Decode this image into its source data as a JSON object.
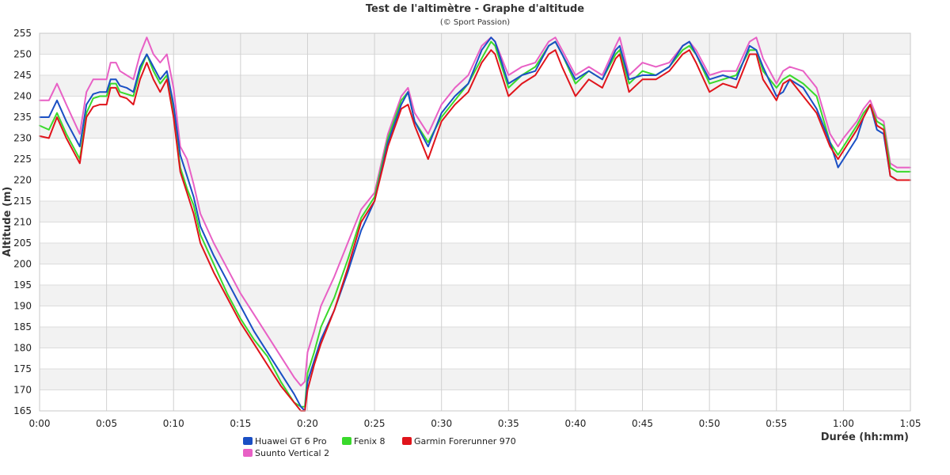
{
  "chart_data": {
    "type": "line",
    "title": "Test de l'altimètre - Graphe d'altitude",
    "subtitle": "(© Sport Passion)",
    "xlabel": "Durée (hh:mm)",
    "ylabel": "Altitude (m)",
    "x_unit": "minutes",
    "xlim": [
      0,
      65
    ],
    "ylim": [
      165,
      255
    ],
    "x_ticks": [
      {
        "v": 0,
        "label": "0:00"
      },
      {
        "v": 5,
        "label": "0:05"
      },
      {
        "v": 10,
        "label": "0:10"
      },
      {
        "v": 15,
        "label": "0:15"
      },
      {
        "v": 20,
        "label": "0:20"
      },
      {
        "v": 25,
        "label": "0:25"
      },
      {
        "v": 30,
        "label": "0:30"
      },
      {
        "v": 35,
        "label": "0:35"
      },
      {
        "v": 40,
        "label": "0:40"
      },
      {
        "v": 45,
        "label": "0:45"
      },
      {
        "v": 50,
        "label": "0:50"
      },
      {
        "v": 55,
        "label": "0:55"
      },
      {
        "v": 60,
        "label": "1:00"
      },
      {
        "v": 65,
        "label": "1:05"
      }
    ],
    "y_ticks": [
      165,
      170,
      175,
      180,
      185,
      190,
      195,
      200,
      205,
      210,
      215,
      220,
      225,
      230,
      235,
      240,
      245,
      250,
      255
    ],
    "grid": true,
    "legend_position": "bottom-left",
    "series": [
      {
        "name": "Huawei GT 6 Pro",
        "color": "#1a4fc4",
        "x": [
          0,
          0.7,
          1.3,
          2,
          3,
          3.5,
          4,
          4.5,
          5,
          5.3,
          5.7,
          6,
          6.5,
          7,
          7.5,
          8,
          8.5,
          9,
          9.5,
          10,
          10.5,
          11,
          11.5,
          12,
          13,
          14,
          15,
          16,
          17,
          18,
          19,
          19.5,
          19.8,
          20,
          20.5,
          21,
          22,
          23,
          24,
          25,
          26,
          27,
          27.5,
          28,
          29,
          30,
          31,
          32,
          33,
          33.7,
          34,
          35,
          36,
          37,
          38,
          38.5,
          39,
          40,
          41,
          42,
          43,
          43.3,
          44,
          45,
          46,
          47,
          48,
          48.5,
          49,
          50,
          51,
          52,
          53,
          53.5,
          54,
          55,
          55.5,
          56,
          57,
          58,
          59,
          59.6,
          60,
          61,
          61.5,
          62,
          62.5,
          63,
          63.5,
          64,
          64.5,
          65
        ],
        "y": [
          235,
          235,
          239,
          234,
          228,
          238,
          240.5,
          241,
          241,
          244,
          244,
          242.5,
          242,
          241,
          247,
          250,
          247,
          244,
          246,
          238,
          226,
          221,
          216,
          209,
          202,
          196,
          190,
          184,
          179,
          174,
          169,
          166,
          165,
          172,
          177,
          182,
          189,
          198,
          208,
          215,
          229,
          238,
          241,
          234,
          228,
          236,
          240,
          243,
          251,
          254,
          253,
          243,
          245,
          246,
          252,
          253,
          250,
          244,
          246,
          244,
          251,
          252,
          244,
          245,
          245,
          247,
          252,
          253,
          250,
          244,
          245,
          244,
          252,
          251,
          247,
          240,
          241,
          244,
          242,
          237,
          229,
          223,
          225,
          230,
          235,
          238,
          232,
          231,
          221,
          220,
          220,
          220
        ]
      },
      {
        "name": "Fenix 8",
        "color": "#39d92b",
        "x": [
          0,
          0.7,
          1.3,
          2,
          3,
          3.5,
          4,
          4.5,
          5,
          5.3,
          5.7,
          6,
          6.5,
          7,
          7.5,
          8,
          8.5,
          9,
          9.5,
          10,
          10.5,
          11,
          11.5,
          12,
          13,
          14,
          15,
          16,
          17,
          18,
          19,
          19.5,
          19.8,
          20,
          20.5,
          21,
          22,
          23,
          24,
          25,
          26,
          27,
          27.5,
          28,
          29,
          30,
          31,
          32,
          33,
          33.7,
          34,
          35,
          36,
          37,
          38,
          38.5,
          39,
          40,
          41,
          42,
          43,
          43.3,
          44,
          45,
          46,
          47,
          48,
          48.5,
          49,
          50,
          51,
          52,
          53,
          53.5,
          54,
          55,
          55.5,
          56,
          57,
          58,
          59,
          59.6,
          60,
          61,
          61.5,
          62,
          62.5,
          63,
          63.5,
          64,
          64.5,
          65
        ],
        "y": [
          233,
          232,
          236,
          231,
          225,
          236,
          239.5,
          240,
          240,
          243,
          243,
          241,
          240.5,
          240,
          246,
          250,
          246,
          243,
          245,
          236,
          223,
          218,
          214,
          207,
          200,
          193,
          187,
          182,
          178,
          172,
          167,
          166,
          166,
          174,
          179,
          185,
          192,
          201,
          211,
          216,
          230,
          239,
          241,
          234,
          229,
          235,
          239,
          243,
          249,
          253,
          252,
          242,
          245,
          247,
          252,
          253,
          250,
          243,
          246,
          244,
          250,
          251,
          243,
          246,
          245,
          247,
          251,
          252,
          250,
          243,
          244,
          245,
          251,
          251,
          246,
          242,
          244,
          245,
          243,
          240,
          229,
          226,
          228,
          233,
          236,
          238,
          234,
          233,
          223,
          222,
          222,
          222
        ]
      },
      {
        "name": "Garmin Forerunner 970",
        "color": "#e0141b",
        "x": [
          0,
          0.7,
          1.3,
          2,
          3,
          3.5,
          4,
          4.5,
          5,
          5.3,
          5.7,
          6,
          6.5,
          7,
          7.5,
          8,
          8.5,
          9,
          9.5,
          10,
          10.5,
          11,
          11.5,
          12,
          13,
          14,
          15,
          16,
          17,
          18,
          19,
          19.5,
          19.8,
          20,
          20.5,
          21,
          22,
          23,
          24,
          25,
          26,
          27,
          27.5,
          28,
          29,
          30,
          31,
          32,
          33,
          33.7,
          34,
          35,
          36,
          37,
          38,
          38.5,
          39,
          40,
          41,
          42,
          43,
          43.3,
          44,
          45,
          46,
          47,
          48,
          48.5,
          49,
          50,
          51,
          52,
          53,
          53.5,
          54,
          55,
          55.5,
          56,
          57,
          58,
          59,
          59.6,
          60,
          61,
          61.5,
          62,
          62.5,
          63,
          63.5,
          64,
          64.5,
          65
        ],
        "y": [
          230.5,
          230,
          235,
          230,
          224,
          235,
          237.5,
          238,
          238,
          242,
          242,
          240,
          239.5,
          238,
          244,
          248,
          244,
          241,
          244,
          235,
          222,
          217,
          212,
          205,
          198,
          192,
          186,
          181,
          176,
          171,
          167,
          165,
          165,
          170,
          176,
          181,
          189,
          199,
          210,
          215,
          228,
          237,
          238,
          233,
          225,
          234,
          238,
          241,
          248,
          251,
          250,
          240,
          243,
          245,
          250,
          251,
          247,
          240,
          244,
          242,
          249,
          250,
          241,
          244,
          244,
          246,
          250,
          251,
          248,
          241,
          243,
          242,
          250,
          250,
          244,
          239,
          243,
          244,
          240,
          236,
          228,
          225,
          227,
          232,
          235,
          238,
          233,
          232,
          221,
          220,
          220,
          220
        ]
      },
      {
        "name": "Suunto Vertical 2",
        "color": "#e860c5",
        "x": [
          0,
          0.7,
          1.3,
          2,
          3,
          3.5,
          4,
          4.5,
          5,
          5.3,
          5.7,
          6,
          6.5,
          7,
          7.5,
          8,
          8.5,
          9,
          9.5,
          10,
          10.5,
          11,
          11.5,
          12,
          13,
          14,
          15,
          16,
          17,
          18,
          19,
          19.5,
          19.8,
          20,
          20.5,
          21,
          22,
          23,
          24,
          25,
          26,
          27,
          27.5,
          28,
          29,
          30,
          31,
          32,
          33,
          33.7,
          34,
          35,
          36,
          37,
          38,
          38.5,
          39,
          40,
          41,
          42,
          43,
          43.3,
          44,
          45,
          46,
          47,
          48,
          48.5,
          49,
          50,
          51,
          52,
          53,
          53.5,
          54,
          55,
          55.5,
          56,
          57,
          58,
          59,
          59.6,
          60,
          61,
          61.5,
          62,
          62.5,
          63,
          63.5,
          64,
          64.5,
          65
        ],
        "y": [
          239,
          239,
          243,
          238,
          231,
          241,
          244,
          244,
          244,
          248,
          248,
          246,
          245,
          244,
          250,
          254,
          250,
          248,
          250,
          242,
          228,
          225,
          219,
          212,
          205,
          199,
          193,
          188,
          183,
          178,
          173,
          171,
          172,
          179,
          184,
          190,
          197,
          205,
          213,
          217,
          231,
          240,
          242,
          236,
          231,
          238,
          242,
          245,
          252,
          254,
          253,
          245,
          247,
          248,
          253,
          254,
          251,
          245,
          247,
          245,
          252,
          254,
          245,
          248,
          247,
          248,
          252,
          253,
          251,
          245,
          246,
          246,
          253,
          254,
          249,
          243,
          246,
          247,
          246,
          242,
          231,
          228,
          230,
          234,
          237,
          239,
          235,
          234,
          224,
          223,
          223,
          223
        ]
      }
    ]
  }
}
